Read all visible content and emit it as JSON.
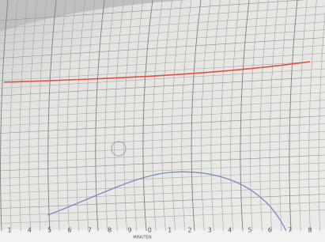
{
  "scale": {
    "labels": [
      "1",
      "4",
      "5",
      "6",
      "7",
      "8",
      "9",
      "0",
      "1",
      "2",
      "3",
      "4",
      "5",
      "6",
      "7",
      "8"
    ],
    "unit": "MINUTEN"
  }
}
